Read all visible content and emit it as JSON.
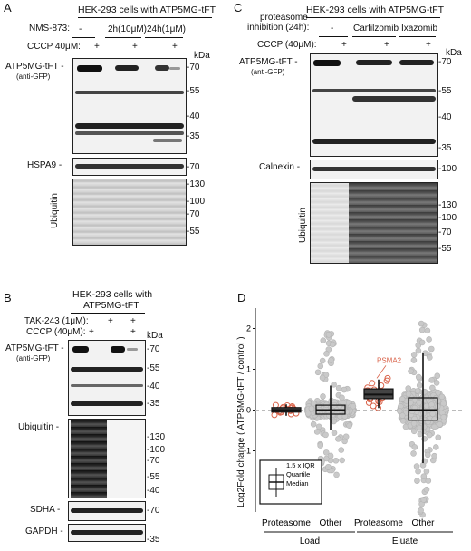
{
  "figure": {
    "panel_labels": {
      "A": "A",
      "B": "B",
      "C": "C",
      "D": "D"
    },
    "panelA": {
      "title": "HEK-293 cells with ATP5MG-tFT",
      "nms_label": "NMS-873:",
      "nms_values": [
        "-",
        "2h(10μM)",
        "24h(1μM)"
      ],
      "cccp_label": "CCCP 40μM:",
      "plus": "+",
      "kda": "kDa",
      "blot1_label": "ATP5MG-tFT -",
      "blot1_sublabel": "(anti-GFP)",
      "blot1_markers": [
        "-70",
        "-55",
        "-40",
        "-35"
      ],
      "blot2_label": "HSPA9 -",
      "blot2_markers": [
        "-70"
      ],
      "blot3_label": "Ubiquitin",
      "blot3_markers": [
        "-130",
        "-100",
        "-70",
        "-55"
      ]
    },
    "panelB": {
      "title_line1": "HEK-293 cells with",
      "title_line2": "ATP5MG-tFT",
      "tak_label": "TAK-243 (1μM):",
      "cccp_label": "CCCP (40μM):",
      "plus": "+",
      "kda": "kDa",
      "blot1_label": "ATP5MG-tFT -",
      "blot1_sublabel": "(anti-GFP)",
      "blot1_markers": [
        "-70",
        "-55",
        "-40",
        "-35"
      ],
      "blot2_label": "Ubiquitin -",
      "blot2_markers": [
        "-130",
        "-100",
        "-70",
        "-55",
        "-40"
      ],
      "blot3_label": "SDHA -",
      "blot3_markers": [
        "-70"
      ],
      "blot4_label": "GAPDH -",
      "blot4_markers": [
        "-35"
      ]
    },
    "panelC": {
      "title": "HEK-293 cells with ATP5MG-tFT",
      "proteasome_label_1": "proteasome",
      "proteasome_label_2": "inhibition (24h):",
      "conditions": [
        "-",
        "Carfilzomib",
        "Ixazomib"
      ],
      "cccp_label": "CCCP (40μM):",
      "plus": "+",
      "kda": "kDa",
      "blot1_label": "ATP5MG-tFT -",
      "blot1_sublabel": "(anti-GFP)",
      "blot1_markers": [
        "-70",
        "-55",
        "-40",
        "-35"
      ],
      "blot2_label": "Calnexin -",
      "blot2_markers": [
        "-100"
      ],
      "blot3_label": "Ubiquitin",
      "blot3_markers": [
        "-130",
        "-100",
        "-70",
        "-55"
      ]
    },
    "panelD": {
      "ylabel": "Log2Fold change ( ATP5MG-tFT / control )",
      "y_ticks": [
        "2",
        "1",
        "0",
        "-1"
      ],
      "highlight_label": "PSMA2",
      "legend": {
        "iqr": "1.5 x IQR",
        "quartile": "Quartile",
        "median": "Median"
      }
    }
  },
  "chart_data": {
    "type": "scatter",
    "title": "",
    "ylabel": "Log2Fold change ( ATP5MG-tFT / control )",
    "xlabel": "",
    "ylim": [
      -2.5,
      2.5
    ],
    "grid": false,
    "groups": [
      "Load",
      "Eluate"
    ],
    "categories": [
      "Proteasome",
      "Other",
      "Proteasome",
      "Other"
    ],
    "series": [
      {
        "name": "Proteasome",
        "group": "Load",
        "median": 0.0,
        "q1": -0.05,
        "q3": 0.06,
        "whisker_low": -0.14,
        "whisker_high": 0.14,
        "values": [
          -0.12,
          -0.08,
          -0.05,
          -0.03,
          0.0,
          0.02,
          0.04,
          0.06,
          0.09,
          0.11,
          -0.02,
          0.01,
          0.03,
          -0.06,
          0.07,
          -0.1,
          0.05,
          0.12
        ]
      },
      {
        "name": "Other",
        "group": "Load",
        "median": 0.0,
        "q1": -0.1,
        "q3": 0.12,
        "whisker_low": -0.5,
        "whisker_high": 0.6,
        "range": [
          -1.6,
          1.9
        ]
      },
      {
        "name": "Proteasome",
        "group": "Eluate",
        "median": 0.38,
        "q1": 0.28,
        "q3": 0.52,
        "whisker_low": 0.05,
        "whisker_high": 0.75,
        "values": [
          0.05,
          0.1,
          0.18,
          0.22,
          0.26,
          0.3,
          0.34,
          0.37,
          0.4,
          0.42,
          0.45,
          0.5,
          0.55,
          0.6,
          0.66,
          0.72,
          0.78,
          0.2,
          0.48,
          0.31
        ],
        "highlight": {
          "label": "PSMA2",
          "value": 0.78
        }
      },
      {
        "name": "Other",
        "group": "Eluate",
        "median": 0.0,
        "q1": -0.25,
        "q3": 0.3,
        "whisker_low": -1.3,
        "whisker_high": 1.4,
        "range": [
          -2.6,
          2.3
        ]
      }
    ]
  }
}
